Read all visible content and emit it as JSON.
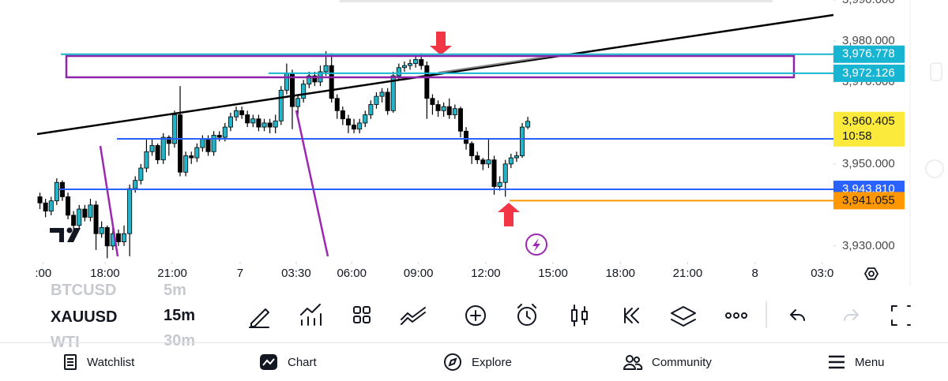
{
  "chart_data": {
    "type": "candlestick",
    "ylim": [
      3926.5,
      3990
    ],
    "xlim": [
      0,
      142
    ],
    "yticks": [
      {
        "value": 3990,
        "label": "3,990.000"
      },
      {
        "value": 3980,
        "label": "3,980.000"
      },
      {
        "value": 3970,
        "label": "3,970.000"
      },
      {
        "value": 3950,
        "label": "3,950.000"
      },
      {
        "value": 3930,
        "label": "3,930.000"
      }
    ],
    "xticks": [
      {
        "value": 1.1,
        "label": ":00"
      },
      {
        "value": 12.1,
        "label": "18:00"
      },
      {
        "value": 24.1,
        "label": "21:00"
      },
      {
        "value": 36.2,
        "label": "7"
      },
      {
        "value": 46.2,
        "label": "03:30"
      },
      {
        "value": 56.1,
        "label": "06:00"
      },
      {
        "value": 68,
        "label": "09:00"
      },
      {
        "value": 80,
        "label": "12:00"
      },
      {
        "value": 92,
        "label": "15:00"
      },
      {
        "value": 104,
        "label": "18:00"
      },
      {
        "value": 116,
        "label": "21:00"
      },
      {
        "value": 128,
        "label": "8"
      },
      {
        "value": 140,
        "label": "03:0"
      }
    ],
    "up_color": "#22b5c9",
    "down_color": "#000000",
    "open": [
      3942,
      3940.5,
      3938.5,
      3941,
      3945.5,
      3942,
      3937.5,
      3935,
      3939,
      3937,
      3940,
      3933,
      3934.5,
      3930,
      3933,
      3931,
      3933,
      3944,
      3946,
      3949,
      3953,
      3954.5,
      3951,
      3956.5,
      3955,
      3962,
      3948,
      3952,
      3951.5,
      3954,
      3956,
      3953,
      3957,
      3956.5,
      3959,
      3961.5,
      3963,
      3962,
      3960,
      3961,
      3959,
      3960,
      3959,
      3960.5,
      3968,
      3972,
      3964,
      3966,
      3969.5,
      3971.5,
      3970,
      3972.5,
      3974,
      3966,
      3963,
      3961,
      3959.5,
      3958.5,
      3960,
      3962,
      3964.5,
      3966.5,
      3967.5,
      3963,
      3971.5,
      3973.5,
      3974,
      3974.5,
      3975.5,
      3974,
      3966,
      3964.5,
      3963,
      3964,
      3962,
      3963.5,
      3958,
      3955,
      3952,
      3951,
      3950,
      3951,
      3944.5,
      3945.5,
      3950,
      3951.5,
      3952,
      3959
    ],
    "high": [
      3943,
      3941.5,
      3942,
      3946.5,
      3946,
      3943,
      3938.5,
      3940,
      3940,
      3941.5,
      3941,
      3936,
      3935,
      3934.5,
      3934,
      3935,
      3945,
      3947,
      3950,
      3956,
      3956,
      3955,
      3957.5,
      3957,
      3963,
      3969,
      3953,
      3953,
      3955,
      3957,
      3957,
      3958,
      3958,
      3960,
      3962.5,
      3964,
      3964,
      3963,
      3962,
      3962,
      3961,
      3961,
      3962,
      3969,
      3974.5,
      3973,
      3967,
      3970.5,
      3972.5,
      3972.5,
      3974,
      3977.5,
      3977,
      3967,
      3964,
      3962,
      3961,
      3961,
      3963,
      3965.5,
      3967.5,
      3968.5,
      3968.5,
      3972.5,
      3974.5,
      3975,
      3975.5,
      3976.5,
      3977,
      3975,
      3967,
      3965.5,
      3965,
      3966,
      3964.5,
      3964,
      3959,
      3955.5,
      3953,
      3951.5,
      3956,
      3952,
      3947,
      3951,
      3952.5,
      3953,
      3960,
      3961.5
    ],
    "low": [
      3939,
      3937,
      3937.5,
      3940,
      3941,
      3936.5,
      3933.5,
      3934,
      3936,
      3936,
      3929,
      3932,
      3927,
      3929,
      3930,
      3930,
      3927.5,
      3943,
      3945,
      3948,
      3952,
      3950,
      3950,
      3952,
      3954,
      3947,
      3947,
      3950,
      3950.5,
      3953,
      3952,
      3952,
      3955.5,
      3955.5,
      3958,
      3960.5,
      3961,
      3959,
      3959,
      3958,
      3958,
      3957.5,
      3957.5,
      3959.5,
      3967,
      3958.5,
      3962,
      3965,
      3968.5,
      3969,
      3969,
      3971.5,
      3965,
      3961,
      3959.5,
      3957.5,
      3957.5,
      3957.5,
      3959,
      3961,
      3963.5,
      3965,
      3962,
      3962.5,
      3970.5,
      3972.5,
      3973,
      3973.5,
      3973,
      3961,
      3962,
      3961.5,
      3961.5,
      3961,
      3961,
      3956.5,
      3953.5,
      3950,
      3950,
      3948.5,
      3949,
      3942.5,
      3943.5,
      3942,
      3949,
      3950.5,
      3951.5,
      3958.5
    ],
    "close": [
      3940.5,
      3938.5,
      3941,
      3945.5,
      3942,
      3937.5,
      3935,
      3939,
      3937,
      3940,
      3933,
      3934.5,
      3930,
      3933,
      3931,
      3933,
      3944,
      3946,
      3949,
      3953,
      3954.5,
      3951,
      3956.5,
      3955,
      3962,
      3948,
      3952,
      3951.5,
      3954,
      3956,
      3953,
      3957,
      3956.5,
      3959,
      3961.5,
      3963,
      3962,
      3960,
      3961,
      3959,
      3960,
      3959,
      3960.5,
      3968,
      3972,
      3964,
      3966,
      3969.5,
      3971.5,
      3970,
      3972.5,
      3974,
      3966,
      3963,
      3961,
      3959.5,
      3958.5,
      3960,
      3962,
      3964.5,
      3966.5,
      3967.5,
      3963,
      3971.5,
      3973.5,
      3974,
      3974.5,
      3975.5,
      3974,
      3966,
      3964.5,
      3963,
      3964,
      3962,
      3963.5,
      3958,
      3955,
      3952,
      3951,
      3950,
      3951,
      3944.5,
      3945.5,
      3950,
      3951.5,
      3952,
      3959,
      3960.405
    ],
    "price_markers": [
      {
        "value": 3976.778,
        "label": "3,976.778",
        "color": "#18b5d2"
      },
      {
        "value": 3972.126,
        "label": "3,972.126",
        "color": "#18b5d2"
      },
      {
        "value": 3960.405,
        "label": "3,960.405",
        "sublabel": "10:58",
        "color": "#fbe93b"
      },
      {
        "value": 3943.81,
        "label": "3,943.810",
        "color": "#2962ff"
      },
      {
        "value": 3941.055,
        "label": "3,941.055",
        "color": "#ff9800"
      }
    ]
  },
  "toolbar": {
    "symbols": [
      {
        "name": "BTCUSD",
        "interval": "5m"
      },
      {
        "name": "XAUUSD",
        "interval": "15m"
      },
      {
        "name": "WTI",
        "interval": "30m"
      }
    ]
  },
  "nav": {
    "items": [
      "Watchlist",
      "Chart",
      "Explore",
      "Community",
      "Menu"
    ]
  }
}
